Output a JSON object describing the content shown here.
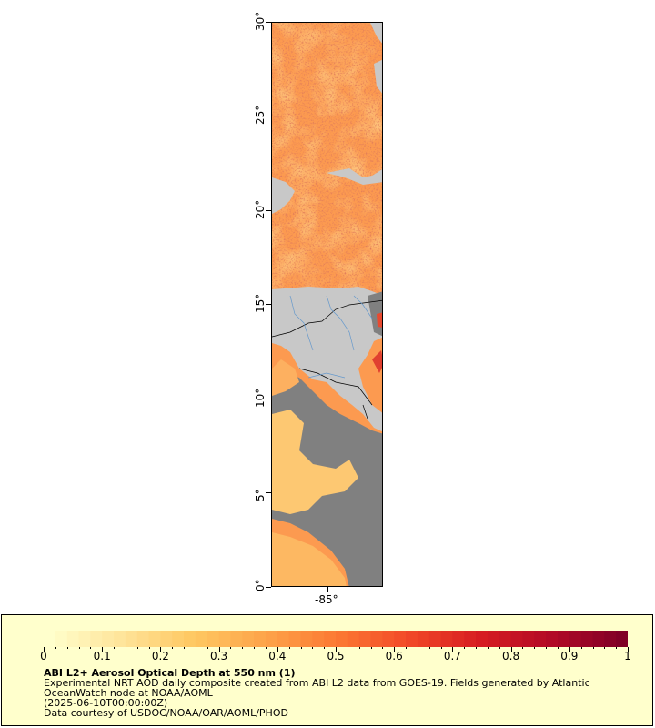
{
  "map": {
    "latitude_labels": [
      "0°",
      "5°",
      "10°",
      "15°",
      "20°",
      "25°",
      "30°"
    ],
    "longitude_labels": [
      "-85°"
    ],
    "colors": {
      "land": "#c8c8c8",
      "no_data": "#808080",
      "border_lines": "#000000",
      "rivers": "#6699cc"
    }
  },
  "legend": {
    "ticks": [
      "0",
      "0.1",
      "0.2",
      "0.3",
      "0.4",
      "0.5",
      "0.6",
      "0.7",
      "0.8",
      "0.9",
      "1"
    ],
    "range": [
      0,
      1
    ],
    "colors": [
      "#ffffcc",
      "#fee49a",
      "#fec862",
      "#fda44a",
      "#fc7a33",
      "#f24a28",
      "#d71d21",
      "#b30a26",
      "#800026"
    ],
    "title": "ABI L2+ Aerosol Optical Depth at 550 nm (1)",
    "line1": "Experimental NRT AOD daily composite created from ABI L2 data from GOES-19. Fields generated by Atlantic",
    "line2": "OceanWatch node at NOAA/AOML",
    "line3": "(2025-06-10T00:00:00Z)",
    "line4": "Data courtesy of USDOC/NOAA/OAR/AOML/PHOD"
  }
}
